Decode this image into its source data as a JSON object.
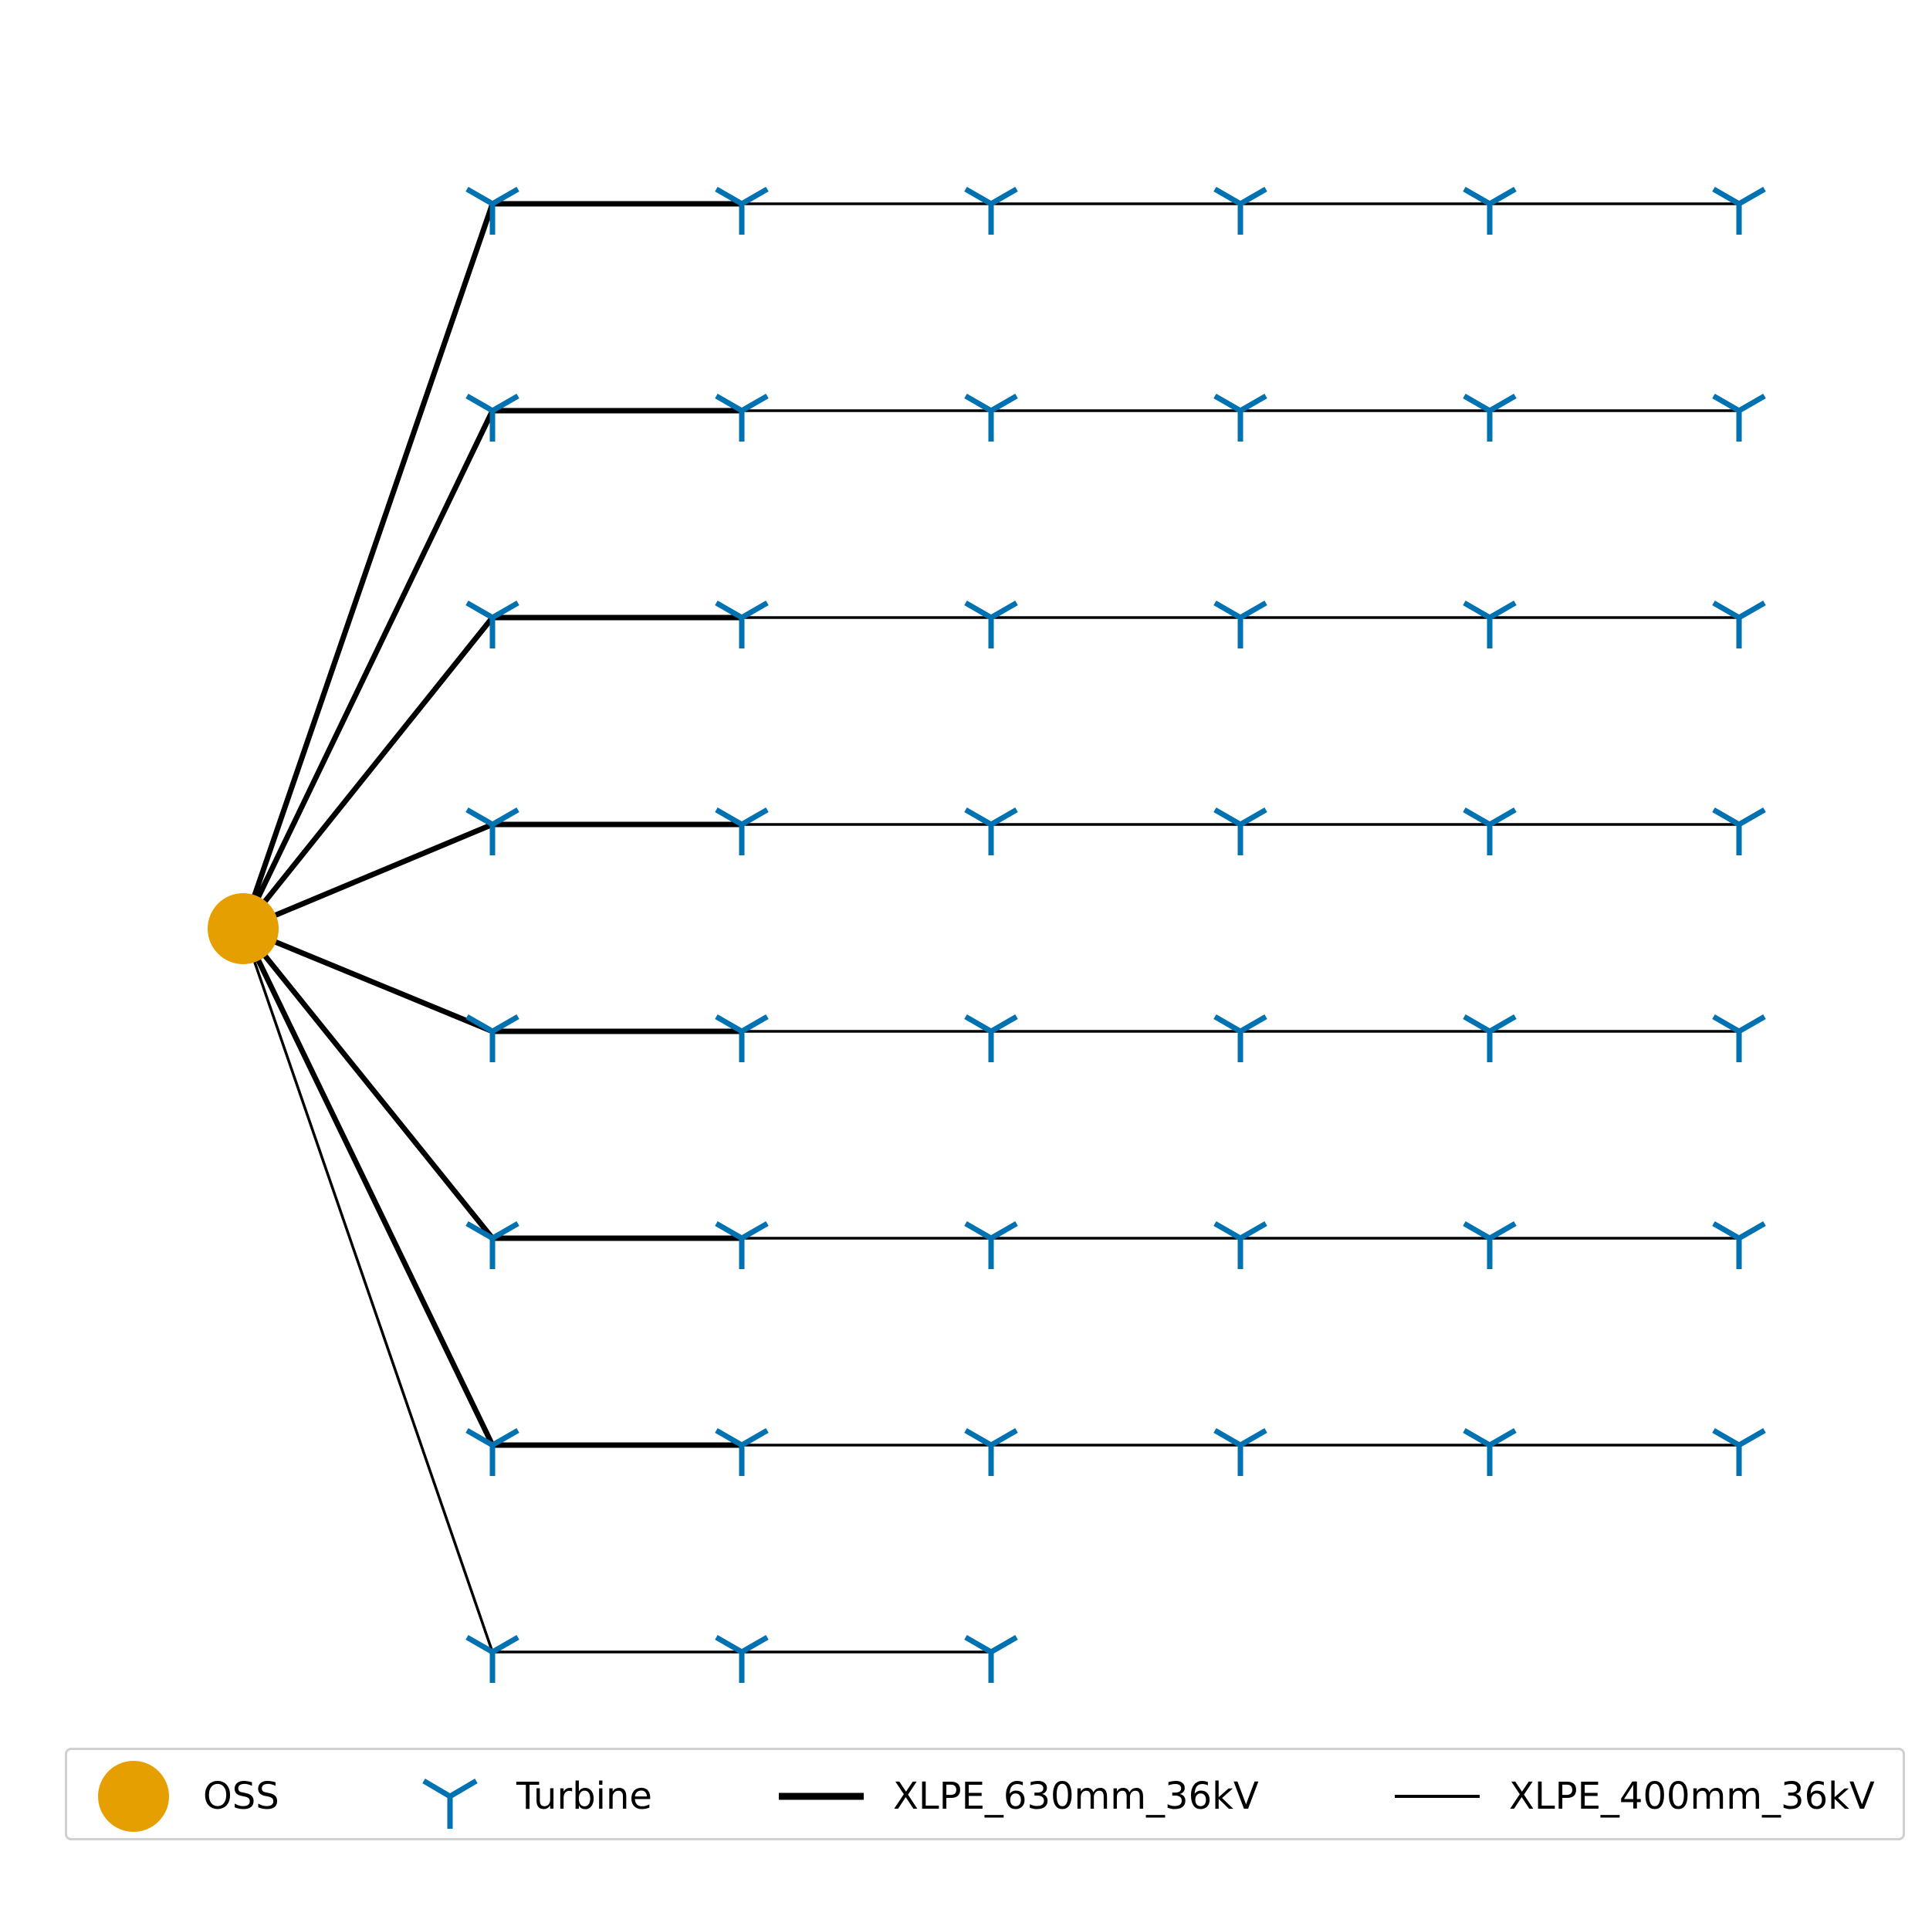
{
  "legend": {
    "items": [
      {
        "key": "oss",
        "label": "OSS",
        "symbol": "circle",
        "color": "#E69F00"
      },
      {
        "key": "turbine",
        "label": "Turbine",
        "symbol": "tri_down-marker",
        "color": "#0072B2"
      },
      {
        "key": "cable_630",
        "label": "XLPE_630mm_36kV",
        "symbol": "thick-line",
        "color": "#000000"
      },
      {
        "key": "cable_400",
        "label": "XLPE_400mm_36kV",
        "symbol": "thin-line",
        "color": "#000000"
      }
    ]
  },
  "network": {
    "substation": {
      "label": "OSS",
      "color": "#E69F00"
    },
    "turbine_color": "#0072B2",
    "cable_color": "#000000",
    "strings": [
      {
        "turbines": 6,
        "export_cable": "XLPE_630mm_36kV",
        "first_link_cable": "XLPE_630mm_36kV",
        "other_links_cable": "XLPE_400mm_36kV"
      },
      {
        "turbines": 6,
        "export_cable": "XLPE_630mm_36kV",
        "first_link_cable": "XLPE_630mm_36kV",
        "other_links_cable": "XLPE_400mm_36kV"
      },
      {
        "turbines": 6,
        "export_cable": "XLPE_630mm_36kV",
        "first_link_cable": "XLPE_630mm_36kV",
        "other_links_cable": "XLPE_400mm_36kV"
      },
      {
        "turbines": 6,
        "export_cable": "XLPE_630mm_36kV",
        "first_link_cable": "XLPE_630mm_36kV",
        "other_links_cable": "XLPE_400mm_36kV"
      },
      {
        "turbines": 6,
        "export_cable": "XLPE_630mm_36kV",
        "first_link_cable": "XLPE_630mm_36kV",
        "other_links_cable": "XLPE_400mm_36kV"
      },
      {
        "turbines": 6,
        "export_cable": "XLPE_630mm_36kV",
        "first_link_cable": "XLPE_630mm_36kV",
        "other_links_cable": "XLPE_400mm_36kV"
      },
      {
        "turbines": 6,
        "export_cable": "XLPE_630mm_36kV",
        "first_link_cable": "XLPE_630mm_36kV",
        "other_links_cable": "XLPE_400mm_36kV"
      },
      {
        "turbines": 3,
        "export_cable": "XLPE_400mm_36kV",
        "first_link_cable": "XLPE_400mm_36kV",
        "other_links_cable": "XLPE_400mm_36kV"
      }
    ]
  }
}
